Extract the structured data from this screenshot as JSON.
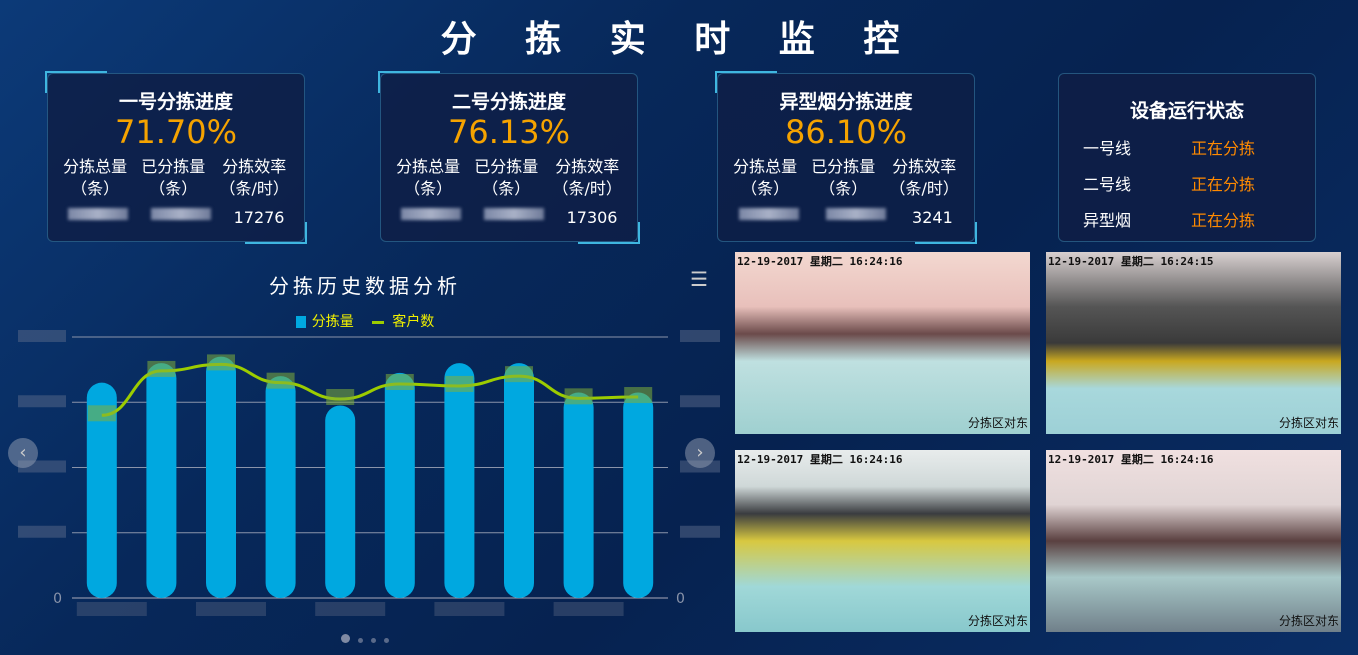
{
  "title": "分 拣 实 时 监 控",
  "cards": [
    {
      "title": "一号分拣进度",
      "percent": "71.70%",
      "col1": "分拣总量",
      "col2": "已分拣量",
      "col3": "分拣效率",
      "unit1": "（条）",
      "unit2": "（条）",
      "unit3": "（条/时）",
      "efficiency": "17276"
    },
    {
      "title": "二号分拣进度",
      "percent": "76.13%",
      "col1": "分拣总量",
      "col2": "已分拣量",
      "col3": "分拣效率",
      "unit1": "（条）",
      "unit2": "（条）",
      "unit3": "（条/时）",
      "efficiency": "17306"
    },
    {
      "title": "异型烟分拣进度",
      "percent": "86.10%",
      "col1": "分拣总量",
      "col2": "已分拣量",
      "col3": "分拣效率",
      "unit1": "（条）",
      "unit2": "（条）",
      "unit3": "（条/时）",
      "efficiency": "3241"
    }
  ],
  "status": {
    "title": "设备运行状态",
    "rows": [
      {
        "name": "一号线",
        "state": "正在分拣"
      },
      {
        "name": "二号线",
        "state": "正在分拣"
      },
      {
        "name": "异型烟",
        "state": "正在分拣"
      }
    ]
  },
  "chart_data": {
    "type": "bar+line",
    "title": "分拣历史数据分析",
    "legend": [
      "分拣量",
      "客户数"
    ],
    "legend_position": "top",
    "y_left_zero": "0",
    "y_right_zero": "0",
    "grid": true,
    "series": [
      {
        "name": "分拣量",
        "type": "bar",
        "color": "#00a8e0",
        "values": [
          3.3,
          3.6,
          3.7,
          3.4,
          2.95,
          3.45,
          3.6,
          3.6,
          3.15,
          3.15
        ]
      },
      {
        "name": "客户数",
        "type": "line",
        "color": "#9ccc00",
        "values": [
          2.8,
          3.48,
          3.58,
          3.3,
          3.05,
          3.28,
          3.25,
          3.4,
          3.06,
          3.08
        ]
      }
    ],
    "ylim": [
      0,
      4
    ]
  },
  "cameras": [
    {
      "timestamp": "12-19-2017 星期二 16:24:16",
      "caption": "分拣区对东"
    },
    {
      "timestamp": "12-19-2017 星期二 16:24:15",
      "caption": "分拣区对东"
    },
    {
      "timestamp": "12-19-2017 星期二 16:24:16",
      "caption": "分拣区对东"
    },
    {
      "timestamp": "12-19-2017 星期二 16:24:16",
      "caption": "分拣区对东"
    }
  ],
  "menu_icon": "hamburger-icon"
}
